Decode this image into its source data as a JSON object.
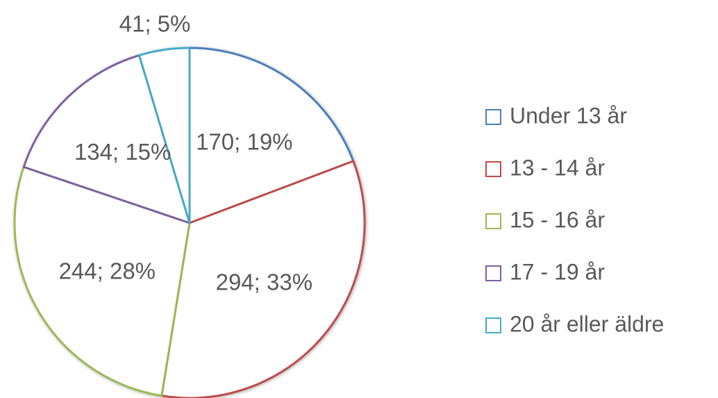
{
  "chart_data": {
    "type": "pie",
    "categories": [
      "Under 13 år",
      "13 - 14 år",
      "15 - 16 år",
      "17 - 19 år",
      "20 år eller äldre"
    ],
    "values": [
      170,
      294,
      244,
      134,
      41
    ],
    "value_labels": [
      "170; 19%",
      "294; 33%",
      "244; 28%",
      "134; 15%",
      "41; 5%"
    ],
    "colors": [
      "#4a7ebb",
      "#be4b48",
      "#98b954",
      "#7d60a0",
      "#46aac5"
    ],
    "legend": "right"
  }
}
